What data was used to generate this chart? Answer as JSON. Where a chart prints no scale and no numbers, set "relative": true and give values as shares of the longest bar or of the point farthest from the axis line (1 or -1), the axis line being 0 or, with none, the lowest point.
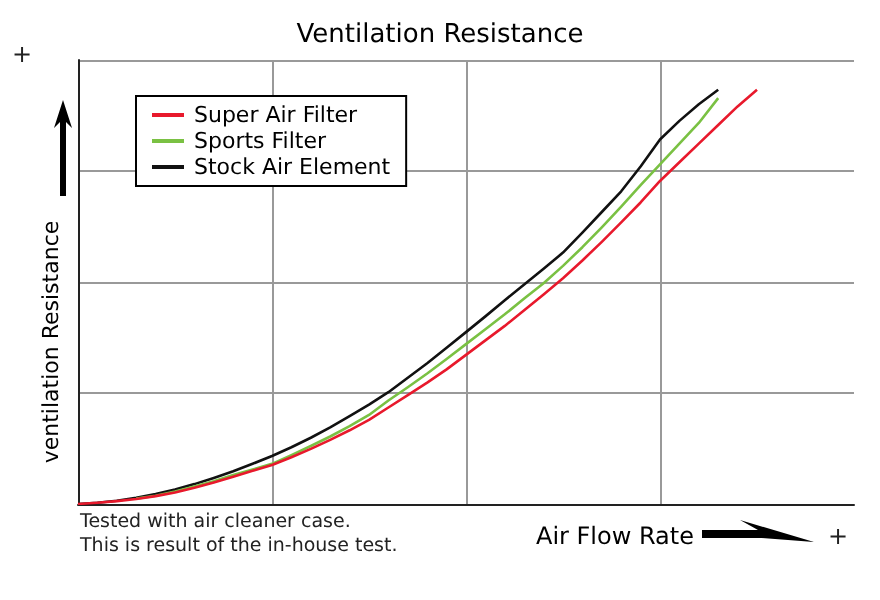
{
  "chart_data": {
    "type": "line",
    "title": "Ventilation Resistance",
    "xlabel": "Air Flow Rate",
    "ylabel": "ventilation Resistance",
    "relative": true,
    "grid": true,
    "legend": "top left",
    "annotations": [
      "Tested with air cleaner case.",
      "This is result of the in-house test.",
      "+",
      "+"
    ],
    "categories": [
      null,
      null,
      null,
      null,
      null,
      null,
      null,
      null,
      null,
      null,
      null,
      null,
      null,
      null,
      null,
      null,
      null,
      null,
      null,
      null,
      null,
      null,
      null,
      null,
      null,
      null,
      null,
      null,
      null,
      null,
      null,
      null,
      null,
      null,
      null,
      null,
      null,
      null,
      null,
      null,
      null
    ],
    "series": [
      {
        "name": "Super Air Filter",
        "color": "#e8192c",
        "values": [
          0,
          0.003,
          0.007,
          0.012,
          0.019,
          0.028,
          0.039,
          0.052,
          0.066,
          0.08,
          0.094,
          0.113,
          0.133,
          0.155,
          0.178,
          0.203,
          0.233,
          0.263,
          0.293,
          0.325,
          0.36,
          0.395,
          0.43,
          0.468,
          0.506,
          0.545,
          0.588,
          0.633,
          0.68,
          0.728,
          0.78,
          0.825,
          0.87,
          0.915,
          0.96,
          1.0,
          null,
          null,
          null,
          null,
          null
        ]
      },
      {
        "name": "Sports Filter",
        "color": "#7ac143",
        "values": [
          null,
          null,
          null,
          0.013,
          0.02,
          0.03,
          0.042,
          0.055,
          0.07,
          0.083,
          0.097,
          0.118,
          0.14,
          0.163,
          0.188,
          0.215,
          0.25,
          0.282,
          0.315,
          0.35,
          0.386,
          0.422,
          0.458,
          0.496,
          0.533,
          0.575,
          0.62,
          0.668,
          0.718,
          0.77,
          0.82,
          0.87,
          0.92,
          0.98,
          null,
          null,
          null,
          null,
          null,
          null,
          null
        ]
      },
      {
        "name": "Stock Air Element",
        "color": "#111111",
        "values": [
          0,
          0.003,
          0.008,
          0.015,
          0.024,
          0.035,
          0.048,
          0.063,
          0.079,
          0.097,
          0.116,
          0.137,
          0.16,
          0.185,
          0.212,
          0.24,
          0.27,
          0.305,
          0.34,
          0.377,
          0.415,
          0.453,
          0.492,
          0.53,
          0.568,
          0.607,
          0.655,
          0.705,
          0.755,
          0.815,
          0.88,
          0.925,
          0.965,
          1.0,
          null,
          null,
          null,
          null,
          null,
          null,
          null
        ]
      }
    ]
  }
}
